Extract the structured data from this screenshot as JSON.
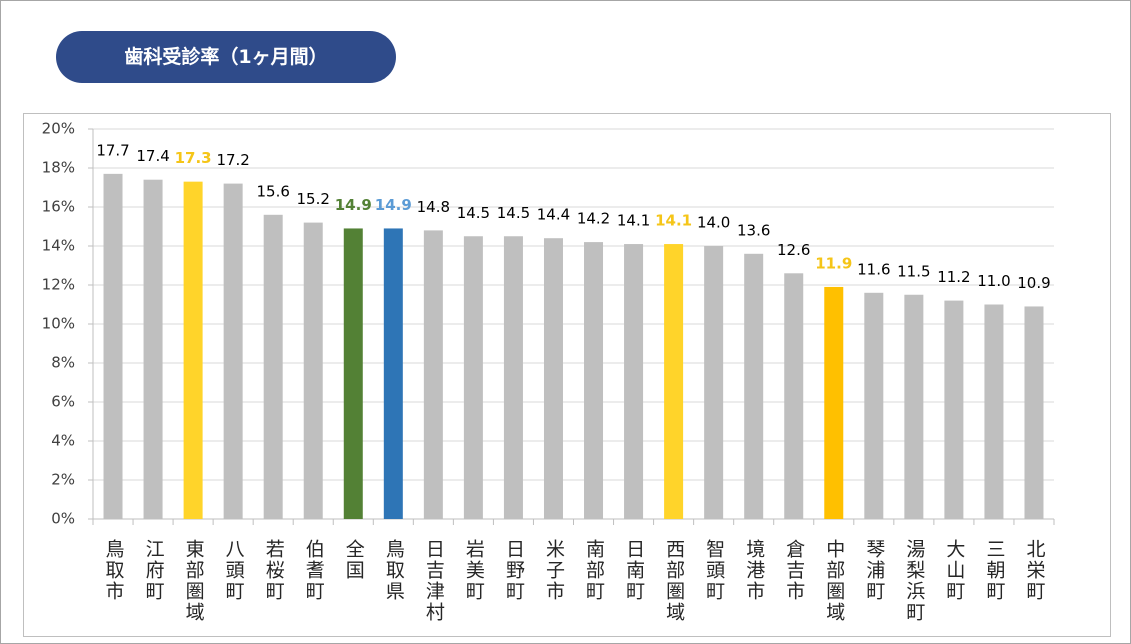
{
  "chart_data": {
    "type": "bar",
    "title": "歯科受診率（1ヶ月間）",
    "categories": [
      "鳥取市",
      "江府町",
      "東部圏域",
      "八頭町",
      "若桜町",
      "伯耆町",
      "全国",
      "鳥取県",
      "日吉津村",
      "岩美町",
      "日野町",
      "米子市",
      "南部町",
      "日南町",
      "西部圏域",
      "智頭町",
      "境港市",
      "倉吉市",
      "中部圏域",
      "琴浦町",
      "湯梨浜町",
      "大山町",
      "三朝町",
      "北栄町"
    ],
    "values": [
      17.7,
      17.4,
      17.3,
      17.2,
      15.6,
      15.2,
      14.9,
      14.9,
      14.8,
      14.5,
      14.5,
      14.4,
      14.2,
      14.1,
      14.1,
      14.0,
      13.6,
      12.6,
      11.9,
      11.6,
      11.5,
      11.2,
      11.0,
      10.9
    ],
    "value_labels": [
      "17.7",
      "17.4",
      "17.3",
      "17.2",
      "15.6",
      "15.2",
      "14.9",
      "14.9",
      "14.8",
      "14.5",
      "14.5",
      "14.4",
      "14.2",
      "14.1",
      "14.1",
      "14.0",
      "13.6",
      "12.6",
      "11.9",
      "11.6",
      "11.5",
      "11.2",
      "11.0",
      "10.9"
    ],
    "colors": [
      "#bfbfbf",
      "#bfbfbf",
      "#ffd42a",
      "#bfbfbf",
      "#bfbfbf",
      "#bfbfbf",
      "#538135",
      "#2e75b6",
      "#bfbfbf",
      "#bfbfbf",
      "#bfbfbf",
      "#bfbfbf",
      "#bfbfbf",
      "#bfbfbf",
      "#ffd42a",
      "#bfbfbf",
      "#bfbfbf",
      "#bfbfbf",
      "#ffc000",
      "#bfbfbf",
      "#bfbfbf",
      "#bfbfbf",
      "#bfbfbf",
      "#bfbfbf"
    ],
    "label_colors": [
      "#000000",
      "#000000",
      "#f5c518",
      "#000000",
      "#000000",
      "#000000",
      "#538135",
      "#5b9bd5",
      "#000000",
      "#000000",
      "#000000",
      "#000000",
      "#000000",
      "#000000",
      "#f5c518",
      "#000000",
      "#000000",
      "#000000",
      "#f5c518",
      "#000000",
      "#000000",
      "#000000",
      "#000000",
      "#000000"
    ],
    "ylim": [
      0,
      20
    ],
    "yticks": [
      {
        "value": 0,
        "label": "0%"
      },
      {
        "value": 2,
        "label": "2%"
      },
      {
        "value": 4,
        "label": "4%"
      },
      {
        "value": 6,
        "label": "6%"
      },
      {
        "value": 8,
        "label": "8%"
      },
      {
        "value": 10,
        "label": "10%"
      },
      {
        "value": 12,
        "label": "12%"
      },
      {
        "value": 14,
        "label": "14%"
      },
      {
        "value": 16,
        "label": "16%"
      },
      {
        "value": 18,
        "label": "18%"
      },
      {
        "value": 20,
        "label": "20%"
      }
    ],
    "grid": true
  }
}
